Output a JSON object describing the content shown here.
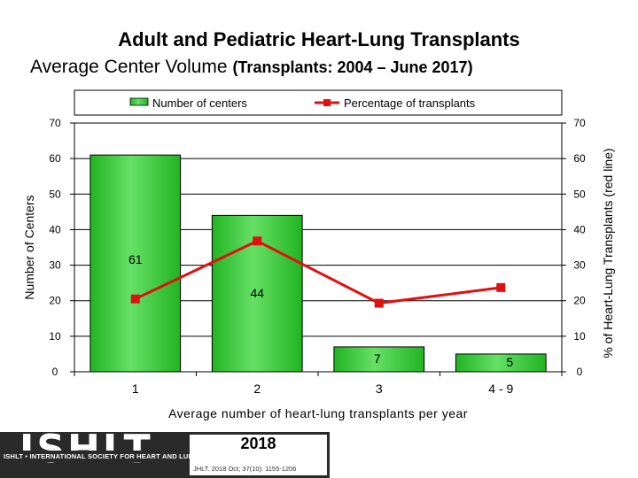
{
  "title": "Adult and Pediatric Heart-Lung Transplants",
  "subtitle_main": "Average Center Volume",
  "subtitle_paren": "(Transplants: 2004 – June 2017)",
  "colors": {
    "bar": "#22b422",
    "bar_light": "#66e066",
    "line": "#e01010",
    "grid": "#000000"
  },
  "chart_data": {
    "type": "bar",
    "categories": [
      "1",
      "2",
      "3",
      "4 - 9"
    ],
    "series": [
      {
        "name": "Number of centers",
        "type": "bar",
        "axis": "left",
        "values": [
          61,
          44,
          7,
          5
        ]
      },
      {
        "name": "Percentage of transplants",
        "type": "line",
        "axis": "right",
        "values": [
          20.5,
          36.8,
          19.3,
          23.7
        ]
      }
    ],
    "data_labels": [
      "61",
      "44",
      "7",
      "5"
    ],
    "xlabel": "Average number of heart-lung transplants per year",
    "ylabel": "Number of Centers",
    "ylabel_right": "% of Heart-Lung Transplants (red line)",
    "ylim": [
      0,
      70
    ],
    "ylim_right": [
      0,
      70
    ],
    "yticks": [
      0,
      10,
      20,
      30,
      40,
      50,
      60,
      70
    ],
    "grid": true,
    "legend": "top"
  },
  "logo": {
    "word": "ISHLT",
    "tagline": "ISHLT • INTERNATIONAL SOCIETY FOR HEART AND LUNG TRANSPLANTATION",
    "year": "2018",
    "citation": "JHLT. 2018 Oct; 37(10): 1155-1206"
  }
}
